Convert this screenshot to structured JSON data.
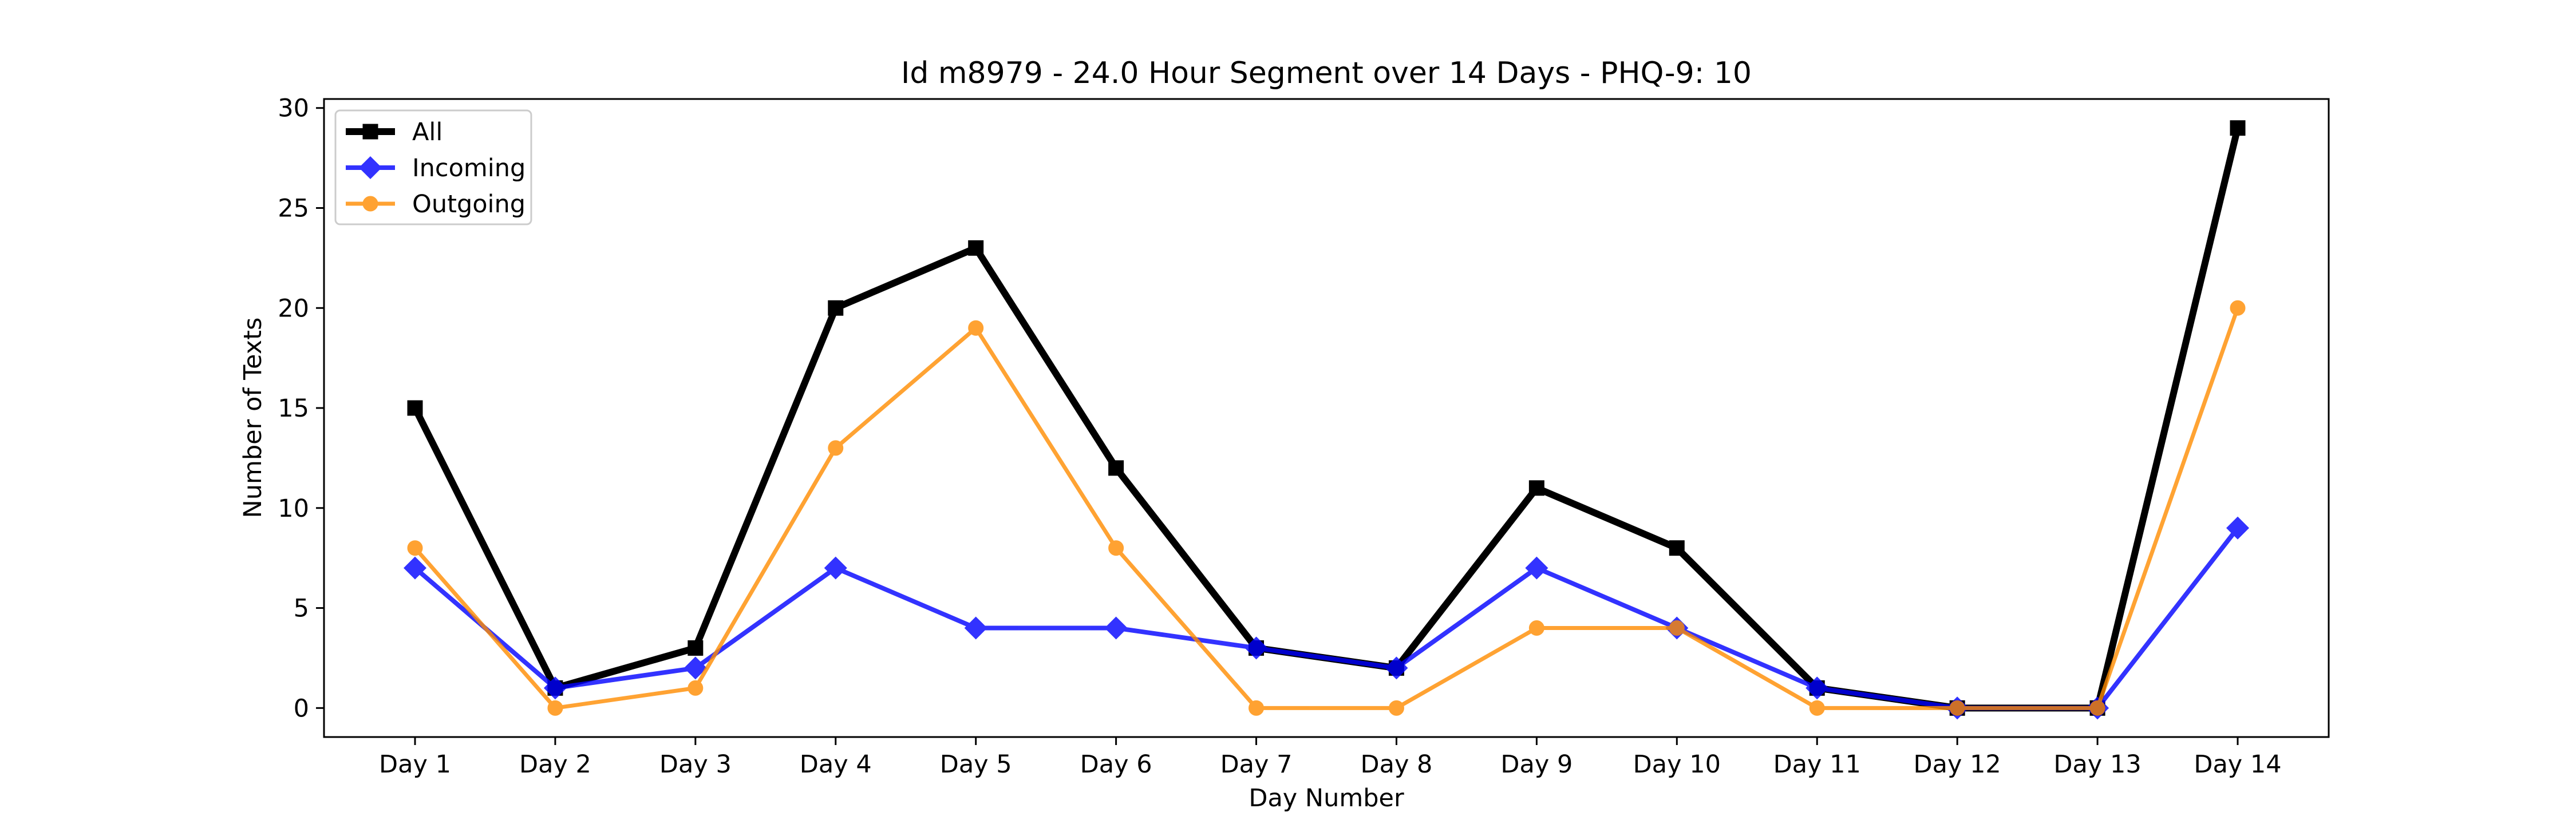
{
  "chart_data": {
    "type": "line",
    "title": "Id m8979 - 24.0 Hour Segment over 14 Days - PHQ-9: 10",
    "xlabel": "Day Number",
    "ylabel": "Number of Texts",
    "categories": [
      "Day 1",
      "Day 2",
      "Day 3",
      "Day 4",
      "Day 5",
      "Day 6",
      "Day 7",
      "Day 8",
      "Day 9",
      "Day 10",
      "Day 11",
      "Day 12",
      "Day 13",
      "Day 14"
    ],
    "yticks": [
      0,
      5,
      10,
      15,
      20,
      25,
      30
    ],
    "ylim": [
      -1.45,
      30.45
    ],
    "grid": false,
    "legend_position": "upper left",
    "series": [
      {
        "name": "All",
        "color": "#000000",
        "marker": "square",
        "values": [
          15,
          1,
          3,
          20,
          23,
          12,
          3,
          2,
          11,
          8,
          1,
          0,
          0,
          29
        ]
      },
      {
        "name": "Incoming",
        "color": "#0000ff",
        "marker": "diamond",
        "values": [
          7,
          1,
          2,
          7,
          4,
          4,
          3,
          2,
          7,
          4,
          1,
          0,
          0,
          9
        ]
      },
      {
        "name": "Outgoing",
        "color": "#ff8c00",
        "marker": "circle",
        "values": [
          8,
          0,
          1,
          13,
          19,
          8,
          0,
          0,
          4,
          4,
          0,
          0,
          0,
          20
        ]
      }
    ]
  }
}
